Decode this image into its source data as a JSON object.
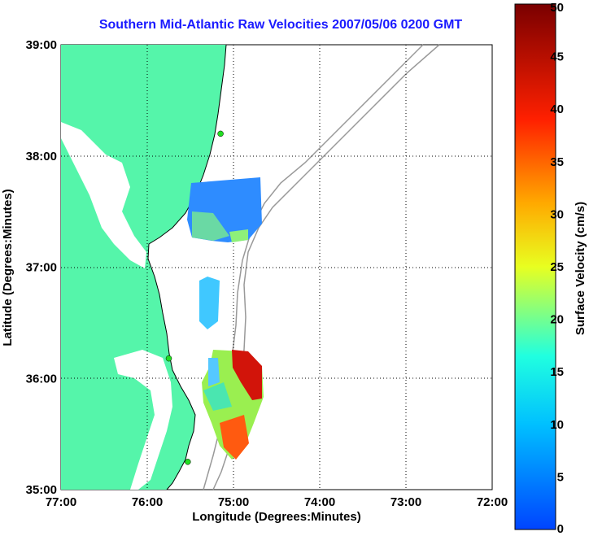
{
  "title": "Southern Mid-Atlantic Raw Velocities 2007/05/06 0200 GMT",
  "x_axis": {
    "label": "Longitude (Degrees:Minutes)",
    "ticks": [
      "77:00",
      "76:00",
      "75:00",
      "74:00",
      "73:00",
      "72:00"
    ]
  },
  "y_axis": {
    "label": "Latitude (Degrees:Minutes)",
    "ticks": [
      "39:00",
      "38:00",
      "37:00",
      "36:00",
      "35:00"
    ]
  },
  "colorbar": {
    "label": "Surface Velocity (cm/s)",
    "ticks": [
      "50",
      "45",
      "40",
      "35",
      "30",
      "25",
      "20",
      "15",
      "10",
      "5",
      "0"
    ],
    "min": 0,
    "max": 50
  },
  "colors": {
    "land": "#55f5aa",
    "title": "#1a1aff",
    "bathymetry": "#999999",
    "stations": "#22dd22"
  },
  "grid": true,
  "map_extent": {
    "lon": [
      -77,
      -72
    ],
    "lat": [
      35,
      39
    ]
  },
  "stations": [
    {
      "lon": -75.15,
      "lat": 38.2
    },
    {
      "lon": -75.75,
      "lat": 36.18
    },
    {
      "lon": -75.53,
      "lat": 35.25
    }
  ]
}
